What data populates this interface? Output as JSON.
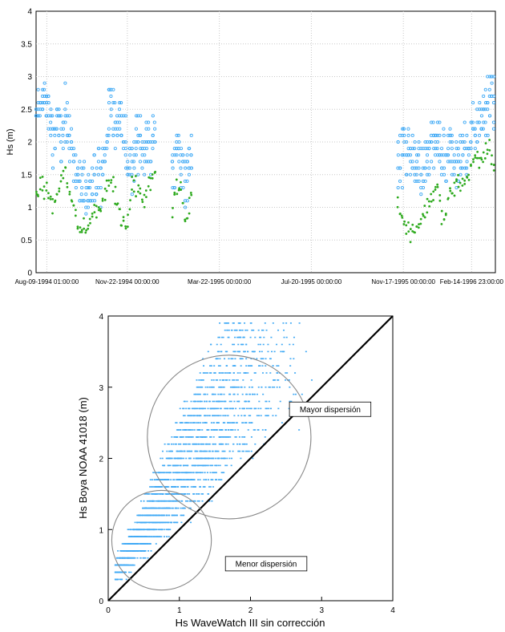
{
  "chart_data": [
    {
      "type": "scatter",
      "title": "",
      "ylabel": "Hs (m)",
      "xlabel": "",
      "ylim": [
        0,
        4
      ],
      "yticks": [
        "0",
        "0.5",
        "1",
        "1.5",
        "2",
        "2.5",
        "3",
        "3.5",
        "4"
      ],
      "xticks": [
        "Aug-09-1994 01:00:00",
        "Nov-22-1994 00:00:00",
        "Mar-22-1995 00:00:00",
        "Jul-20-1995 00:00:00",
        "Nov-17-1995 00:00:00",
        "Feb-14-1996 23:00:00"
      ],
      "xlim": [
        "1994-07-26",
        "1996-03-16"
      ],
      "grid": true,
      "colors": {
        "buoy": "#3fa9f5",
        "model": "#2eaa1e"
      },
      "series": [
        {
          "segments": [
            {
              "start": "1994-07-26",
              "end": "1994-12-28",
              "level": [
                2.4,
                2.7,
                2.6,
                2.0,
                2.2,
                2.3,
                2.1,
                1.6,
                1.2,
                1.3,
                1.3,
                1.4,
                1.6,
                2.6,
                2.3,
                2.4,
                1.8,
                1.5,
                2.1,
                2.0,
                1.9,
                2.1
              ]
            },
            {
              "start": "1995-01-20",
              "end": "1995-02-16",
              "level": [
                1.6,
                1.8,
                1.5,
                2.0
              ]
            },
            {
              "start": "1995-11-10",
              "end": "1996-03-16",
              "level": [
                1.7,
                1.9,
                1.8,
                1.6,
                1.5,
                1.9,
                2.0,
                1.6,
                1.9,
                1.7,
                1.8,
                2.0,
                2.3,
                2.4,
                2.7,
                2.6
              ]
            }
          ]
        },
        {
          "segments": [
            {
              "start": "1994-07-26",
              "end": "1994-12-28",
              "level": [
                1.1,
                1.4,
                1.2,
                1.0,
                1.3,
                1.6,
                1.2,
                0.9,
                0.7,
                0.6,
                0.9,
                1.0,
                1.2,
                1.5,
                1.2,
                0.8,
                0.6,
                1.4,
                1.3,
                1.0,
                1.4,
                1.5
              ]
            },
            {
              "start": "1995-01-20",
              "end": "1995-02-16",
              "level": [
                1.0,
                1.4,
                0.7,
                1.5
              ]
            },
            {
              "start": "1995-11-10",
              "end": "1996-03-16",
              "level": [
                1.0,
                0.8,
                0.6,
                0.7,
                0.9,
                1.1,
                1.3,
                0.8,
                1.2,
                1.4,
                1.3,
                1.6,
                1.8,
                1.7,
                1.9,
                1.6
              ]
            }
          ]
        }
      ]
    },
    {
      "type": "scatter",
      "title": "",
      "xlabel": "Hs WaveWatch III sin corrección",
      "ylabel": "Hs Boya NOAA 41018 (m)",
      "xlim": [
        0,
        4
      ],
      "ylim": [
        0,
        4
      ],
      "xticks": [
        "0",
        "1",
        "2",
        "3",
        "4"
      ],
      "yticks": [
        "0",
        "1",
        "2",
        "3",
        "4"
      ],
      "grid": false,
      "colors": {
        "points": "#3fa9f5",
        "line": "#000000",
        "circle": "#888888"
      },
      "points_relation": {
        "x_range": [
          0.1,
          2.9
        ],
        "y_over_x": [
          1.1,
          2.4
        ]
      },
      "reference_line": {
        "from": [
          0,
          0
        ],
        "to": [
          4,
          4
        ]
      },
      "circles": [
        {
          "center": [
            1.7,
            2.3
          ],
          "radius": 1.15
        },
        {
          "center": [
            0.75,
            0.85
          ],
          "radius": 0.7
        }
      ],
      "annotations": [
        {
          "text": "Mayor dispersión",
          "x": 3.12,
          "y": 2.69
        },
        {
          "text": "Menor dispersión",
          "x": 2.22,
          "y": 0.52
        }
      ]
    }
  ]
}
